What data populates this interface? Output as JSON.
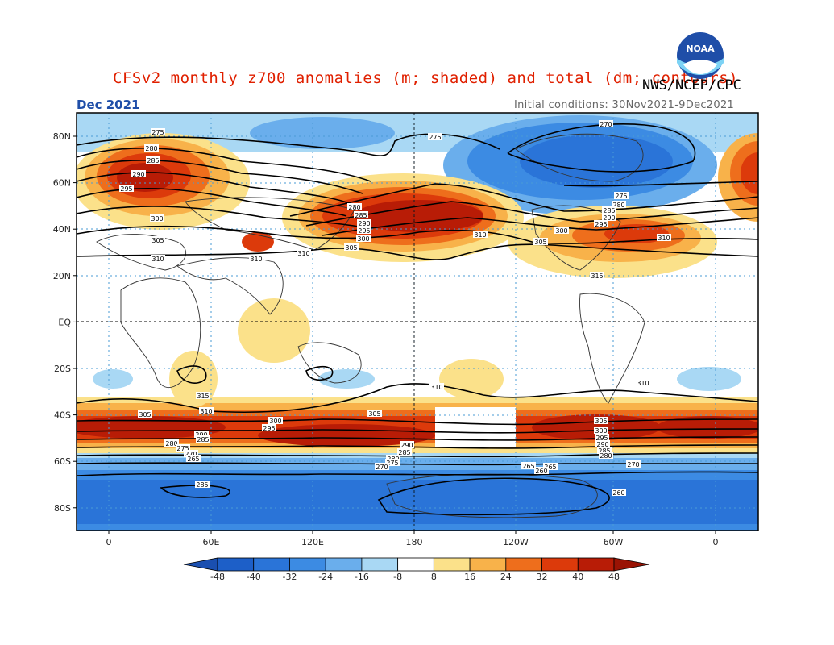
{
  "title": "CFSv2 monthly z700 anomalies (m; shaded) and total (dm; contours)",
  "org_label": "NWS/NCEP/CPC",
  "logo_text": "NOAA",
  "month_label": "Dec 2021",
  "initial_conditions": "Initial conditions: 30Nov2021-9Dec2021",
  "lat_labels": [
    "80N",
    "60N",
    "40N",
    "20N",
    "EQ",
    "20S",
    "40S",
    "60S",
    "80S"
  ],
  "lon_labels": [
    "0",
    "60E",
    "120E",
    "180",
    "120W",
    "60W",
    "0"
  ],
  "colorbar": {
    "ticks": [
      "-48",
      "-40",
      "-32",
      "-24",
      "-16",
      "-8",
      "8",
      "16",
      "24",
      "32",
      "40",
      "48"
    ],
    "colors": [
      "#1d5fc8",
      "#2a74d8",
      "#3c8be3",
      "#6aaeec",
      "#a9d8f4",
      "#ffffff",
      "#fbe18a",
      "#f8b24a",
      "#ee6e1c",
      "#dc3a0b",
      "#b81c06"
    ]
  },
  "contour_labels": [
    {
      "text": "275"
    },
    {
      "text": "280"
    },
    {
      "text": "285"
    },
    {
      "text": "290"
    },
    {
      "text": "295"
    },
    {
      "text": "300"
    },
    {
      "text": "305"
    },
    {
      "text": "310"
    },
    {
      "text": "310"
    },
    {
      "text": "275"
    },
    {
      "text": "270"
    },
    {
      "text": "280"
    },
    {
      "text": "285"
    },
    {
      "text": "290"
    },
    {
      "text": "295"
    },
    {
      "text": "300"
    },
    {
      "text": "305"
    },
    {
      "text": "310"
    },
    {
      "text": "310"
    },
    {
      "text": "275"
    },
    {
      "text": "280"
    },
    {
      "text": "285"
    },
    {
      "text": "290"
    },
    {
      "text": "295"
    },
    {
      "text": "300"
    },
    {
      "text": "305"
    },
    {
      "text": "310"
    },
    {
      "text": "315"
    },
    {
      "text": "315"
    },
    {
      "text": "310"
    },
    {
      "text": "305"
    },
    {
      "text": "300"
    },
    {
      "text": "295"
    },
    {
      "text": "290"
    },
    {
      "text": "285"
    },
    {
      "text": "280"
    },
    {
      "text": "275"
    },
    {
      "text": "270"
    },
    {
      "text": "265"
    },
    {
      "text": "285"
    },
    {
      "text": "310"
    },
    {
      "text": "305"
    },
    {
      "text": "290"
    },
    {
      "text": "285"
    },
    {
      "text": "280"
    },
    {
      "text": "275"
    },
    {
      "text": "270"
    },
    {
      "text": "265"
    },
    {
      "text": "260"
    },
    {
      "text": "305"
    },
    {
      "text": "300"
    },
    {
      "text": "295"
    },
    {
      "text": "290"
    },
    {
      "text": "285"
    },
    {
      "text": "280"
    },
    {
      "text": "270"
    },
    {
      "text": "260"
    },
    {
      "text": "310"
    },
    {
      "text": "265"
    }
  ]
}
